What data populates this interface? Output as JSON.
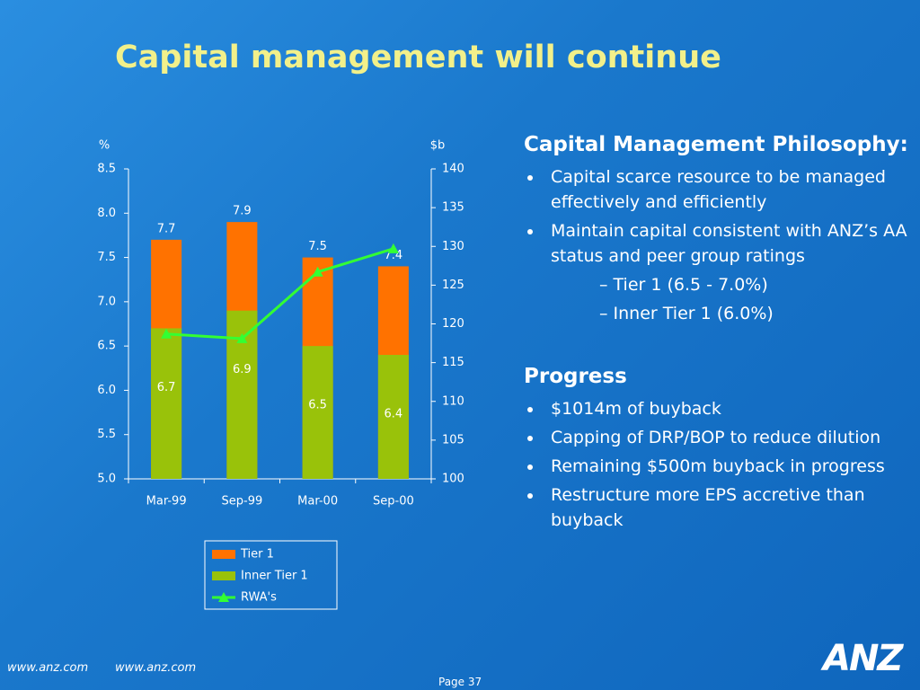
{
  "title": "Capital management will continue",
  "chart_data": {
    "type": "bar",
    "ylabel": "%",
    "y2label": "$b",
    "categories": [
      "Mar-99",
      "Sep-99",
      "Mar-00",
      "Sep-00"
    ],
    "series": [
      {
        "name": "Tier 1",
        "color": "#ff7200",
        "values": [
          7.7,
          7.9,
          7.5,
          7.4
        ]
      },
      {
        "name": "Inner Tier 1",
        "color": "#99c20a",
        "values": [
          6.7,
          6.9,
          6.5,
          6.4
        ]
      },
      {
        "name": "RWA's",
        "color": "#33ff33",
        "type": "line",
        "axis": "y2",
        "values": [
          118.7,
          118.1,
          126.7,
          129.7
        ]
      }
    ],
    "ylim": [
      5,
      8.5
    ],
    "yticks": [
      {
        "value": 5,
        "label": "5.0"
      },
      {
        "value": 5.5,
        "label": "5.5"
      },
      {
        "value": 6,
        "label": "6.0"
      },
      {
        "value": 6.5,
        "label": "6.5"
      },
      {
        "value": 7,
        "label": "7.0"
      },
      {
        "value": 7.5,
        "label": "7.5"
      },
      {
        "value": 8,
        "label": "8.0"
      },
      {
        "value": 8.5,
        "label": "8.5"
      }
    ],
    "y2lim": [
      100,
      140
    ],
    "y2ticks": [
      100,
      105,
      110,
      115,
      120,
      125,
      130,
      135,
      140
    ],
    "grid": false
  },
  "text_panel": {
    "heading1": "Capital Management Philosophy:",
    "bullets1": [
      "Capital scarce resource to be managed effectively and efficiently",
      "Maintain capital consistent with ANZ’s AA status and peer group ratings"
    ],
    "subbullets": [
      "– Tier 1 (6.5 - 7.0%)",
      "– Inner Tier 1 (6.0%)"
    ],
    "heading2": "Progress",
    "bullets2": [
      "$1014m of buyback",
      "Capping of DRP/BOP to reduce dilution",
      "Remaining $500m buyback in progress",
      "Restructure more EPS accretive than buyback"
    ]
  },
  "footer": {
    "links": [
      "www.anz.com",
      "www.anz.com"
    ],
    "page": "Page 37",
    "logo": "ANZ"
  }
}
